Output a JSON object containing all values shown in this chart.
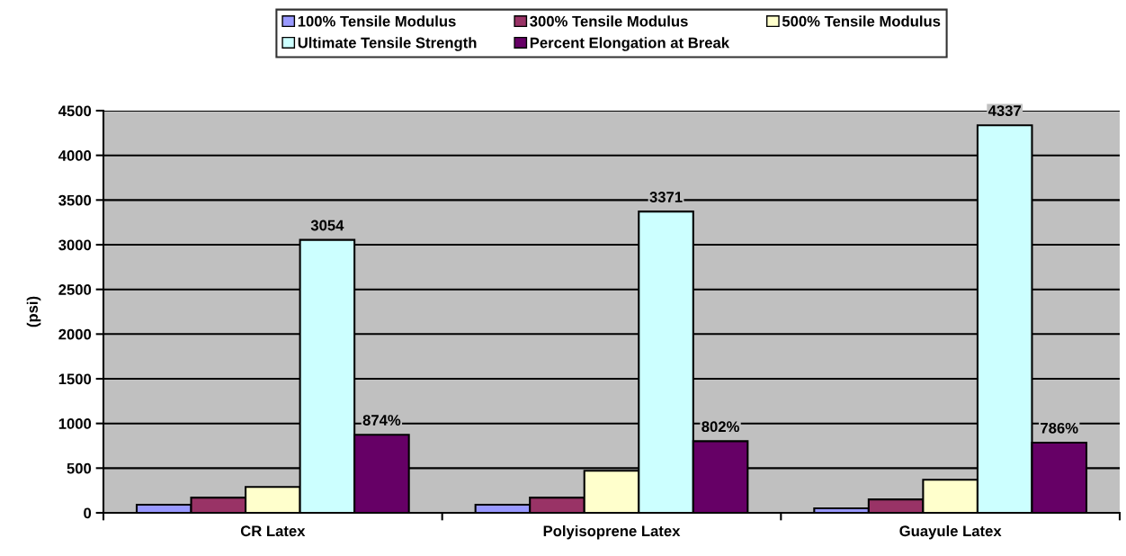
{
  "chart_data": {
    "type": "bar",
    "ylabel": "(psi)",
    "categories": [
      "CR Latex",
      "Polyisoprene Latex",
      "Guayule Latex"
    ],
    "series": [
      {
        "name": "100% Tensile Modulus",
        "color": "#9999ff",
        "values": [
          90,
          90,
          50
        ]
      },
      {
        "name": "300% Tensile Modulus",
        "color": "#993366",
        "values": [
          170,
          170,
          150
        ]
      },
      {
        "name": "500% Tensile Modulus",
        "color": "#ffffcc",
        "values": [
          290,
          470,
          370
        ]
      },
      {
        "name": "Ultimate Tensile Strength",
        "color": "#ccffff",
        "values": [
          3054,
          3371,
          4337
        ],
        "value_labels": [
          "3054",
          "3371",
          "4337"
        ]
      },
      {
        "name": "Percent Elongation at Break",
        "color": "#660066",
        "values": [
          874,
          802,
          786
        ],
        "value_labels": [
          "874%",
          "802%",
          "786%"
        ]
      }
    ],
    "ylim": [
      0,
      4500
    ],
    "yticks": [
      0,
      500,
      1000,
      1500,
      2000,
      2500,
      3000,
      3500,
      4000,
      4500
    ],
    "grid": "y",
    "legend": "top"
  }
}
